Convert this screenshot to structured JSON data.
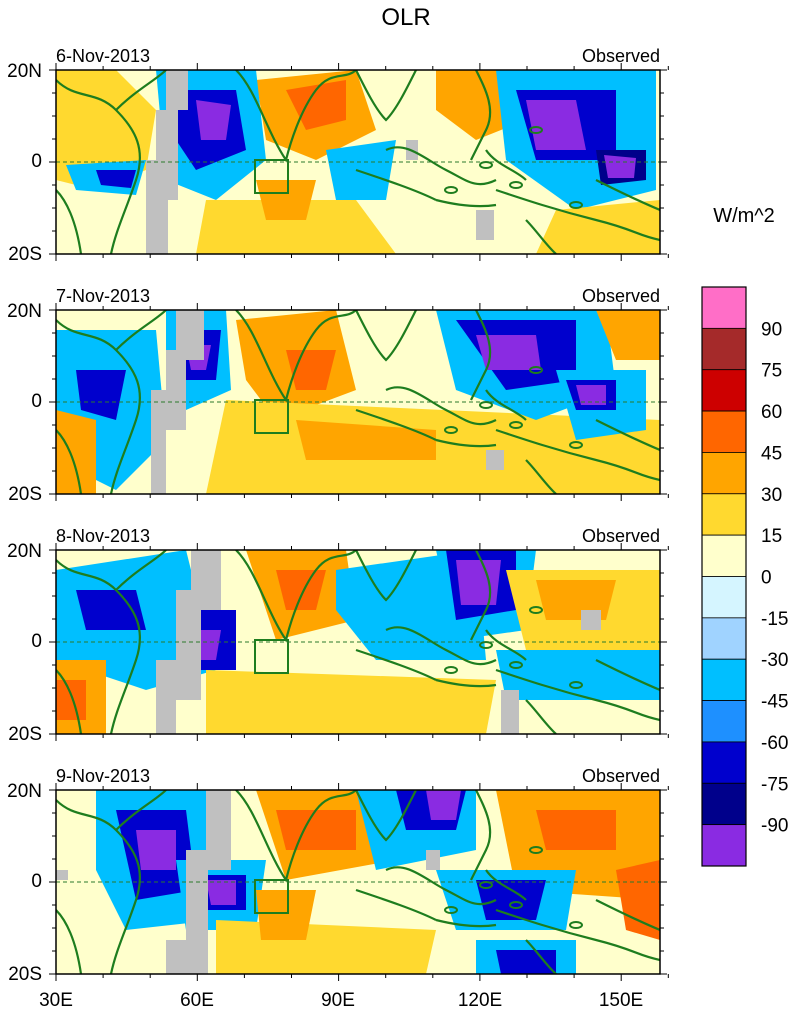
{
  "title": "OLR",
  "units": "W/m^2",
  "latitude_labels": [
    "20N",
    "0",
    "20S"
  ],
  "longitude_labels": [
    "30E",
    "60E",
    "90E",
    "120E",
    "150E"
  ],
  "panels": [
    {
      "date": "6-Nov-2013",
      "label": "Observed"
    },
    {
      "date": "7-Nov-2013",
      "label": "Observed"
    },
    {
      "date": "8-Nov-2013",
      "label": "Observed"
    },
    {
      "date": "9-Nov-2013",
      "label": "Observed"
    }
  ],
  "colorbar": {
    "colors": [
      "#ff6ec7",
      "#a52a2a",
      "#cd0000",
      "#ff6600",
      "#ffa500",
      "#ffd92f",
      "#ffffcc",
      "#d5f5ff",
      "#a0d3ff",
      "#00bfff",
      "#1e90ff",
      "#0000cd",
      "#00008b",
      "#8a2be2"
    ],
    "labels": [
      "90",
      "75",
      "60",
      "45",
      "30",
      "15",
      "0",
      "-15",
      "-30",
      "-45",
      "-60",
      "-75",
      "-90"
    ]
  },
  "palette": {
    "coast": "#1e7d1e",
    "missing": "#c0c0c0",
    "equator": "#2b7a2b"
  }
}
